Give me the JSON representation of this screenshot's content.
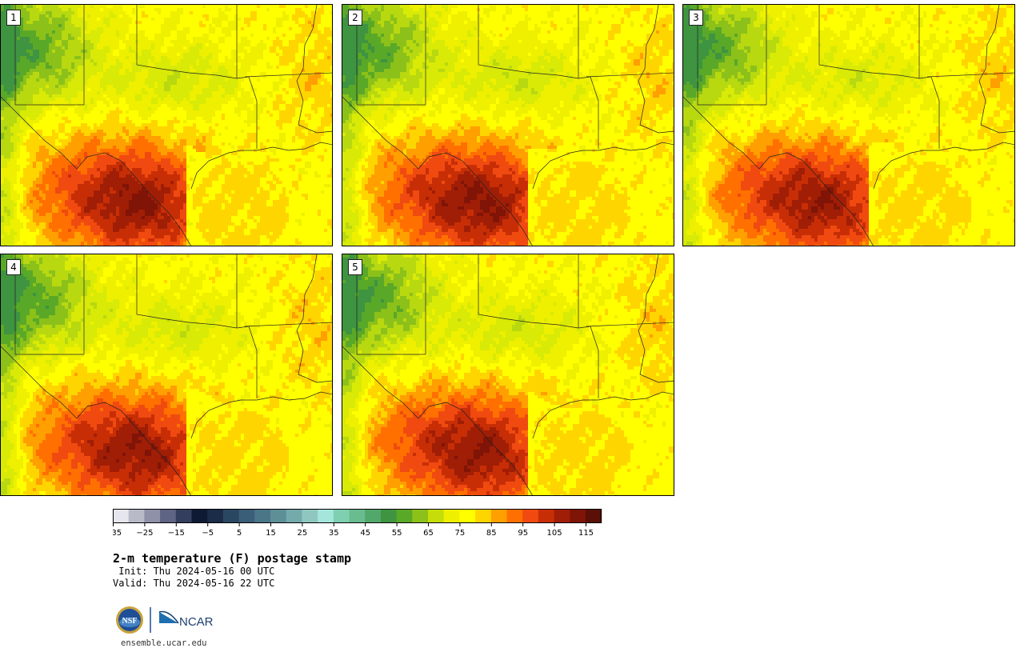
{
  "panels": [
    {
      "label": "1"
    },
    {
      "label": "2"
    },
    {
      "label": "3"
    },
    {
      "label": "4"
    },
    {
      "label": "5"
    }
  ],
  "colorbar": {
    "colors": [
      "#e6e7ee",
      "#b8bac8",
      "#8e91a7",
      "#5e6483",
      "#333e5e",
      "#0e1a33",
      "#1a2c48",
      "#2a4762",
      "#3b5e78",
      "#4b7688",
      "#5e8f96",
      "#74aaaa",
      "#8fc7c0",
      "#a4e6dc",
      "#7ed0b0",
      "#69bc90",
      "#52a86a",
      "#3e9440",
      "#5aa828",
      "#8cc11a",
      "#c6dd0a",
      "#eef000",
      "#ffff00",
      "#ffd500",
      "#ff9f00",
      "#ff7000",
      "#f04a10",
      "#c82e06",
      "#a01e06",
      "#801406",
      "#5a1006"
    ],
    "tick_labels": [
      "−35",
      "−25",
      "−15",
      "−5",
      "5",
      "15",
      "25",
      "35",
      "45",
      "55",
      "65",
      "75",
      "85",
      "95",
      "105",
      "115"
    ]
  },
  "title": "2-m temperature (F) postage stamp",
  "init_line": " Init: Thu 2024-05-16 00 UTC",
  "valid_line": "Valid: Thu 2024-05-16 22 UTC",
  "logos": {
    "nsf": "NSF",
    "ncar": "NCAR"
  },
  "footer": "ensemble.ucar.edu"
}
